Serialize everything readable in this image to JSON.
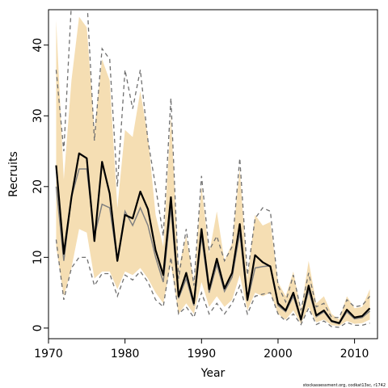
{
  "chart_data": {
    "type": "line",
    "title": "",
    "xlabel": "Year",
    "ylabel": "Recruits",
    "xlim": [
      1970,
      2013
    ],
    "ylim": [
      -1.5,
      45
    ],
    "xticks": [
      1970,
      1980,
      1990,
      2000,
      2010
    ],
    "yticks": [
      0,
      10,
      20,
      30,
      40
    ],
    "grid": false,
    "legend": "none",
    "credit": "stockassessment.org, codkat13sc, r1742",
    "colors": {
      "band": "#f5deb3",
      "estimate": "#000000",
      "secondary": "#808080",
      "bounds": "#707070"
    },
    "x": [
      1971,
      1972,
      1973,
      1974,
      1975,
      1976,
      1977,
      1978,
      1979,
      1980,
      1981,
      1982,
      1983,
      1984,
      1985,
      1986,
      1987,
      1988,
      1989,
      1990,
      1991,
      1992,
      1993,
      1994,
      1995,
      1996,
      1997,
      1998,
      1999,
      2000,
      2001,
      2002,
      2003,
      2004,
      2005,
      2006,
      2007,
      2008,
      2009,
      2010,
      2011,
      2012
    ],
    "series": [
      {
        "values": [
          23.0,
          10.5,
          18.5,
          24.7,
          24.0,
          12.3,
          23.5,
          19.0,
          9.5,
          16.0,
          15.5,
          19.3,
          16.8,
          11.0,
          7.5,
          18.5,
          4.5,
          7.8,
          3.5,
          14.0,
          5.5,
          9.8,
          5.6,
          7.8,
          14.7,
          4.0,
          10.3,
          9.3,
          8.7,
          3.5,
          2.5,
          5.0,
          1.2,
          6.0,
          1.8,
          2.5,
          1.0,
          0.7,
          2.6,
          1.5,
          1.7,
          2.8
        ],
        "style": "estimate"
      },
      {
        "values": [
          20.0,
          9.5,
          18.5,
          22.5,
          22.5,
          13.0,
          17.5,
          17.0,
          9.5,
          16.5,
          14.5,
          17.0,
          14.5,
          10.0,
          6.5,
          17.0,
          4.2,
          7.0,
          3.2,
          13.0,
          5.0,
          9.0,
          5.2,
          7.2,
          13.5,
          3.8,
          8.5,
          8.7,
          8.8,
          3.2,
          2.3,
          4.5,
          1.1,
          5.3,
          1.6,
          2.3,
          0.9,
          0.6,
          2.3,
          1.3,
          1.5,
          2.4
        ],
        "style": "secondary"
      }
    ],
    "band": {
      "upper": [
        43.5,
        21.0,
        35.0,
        44.0,
        42.5,
        28.0,
        38.0,
        35.0,
        17.0,
        28.0,
        27.0,
        33.5,
        27.0,
        16.0,
        11.5,
        30.0,
        8.5,
        13.0,
        6.5,
        20.0,
        10.5,
        16.5,
        9.5,
        12.0,
        22.5,
        7.0,
        16.0,
        14.5,
        15.0,
        6.5,
        4.5,
        8.0,
        2.5,
        9.5,
        3.5,
        4.5,
        2.0,
        1.2,
        4.5,
        2.8,
        3.0,
        5.5
      ],
      "lower": [
        11.5,
        4.5,
        8.5,
        14.0,
        13.5,
        7.0,
        8.0,
        8.0,
        5.5,
        8.0,
        7.5,
        8.5,
        7.0,
        5.0,
        3.5,
        9.0,
        2.0,
        3.5,
        2.0,
        6.5,
        3.0,
        4.5,
        3.0,
        4.0,
        7.5,
        2.5,
        5.0,
        4.5,
        5.0,
        2.0,
        1.2,
        2.5,
        0.6,
        3.0,
        0.8,
        1.2,
        0.4,
        0.3,
        1.0,
        0.6,
        0.7,
        1.2
      ]
    },
    "bounds": {
      "upper": [
        36.5,
        25.0,
        46.0,
        52.0,
        47.0,
        26.5,
        39.5,
        38.0,
        20.0,
        36.5,
        31.0,
        36.5,
        26.5,
        20.0,
        13.0,
        32.5,
        7.0,
        14.0,
        6.0,
        21.5,
        11.0,
        13.0,
        9.5,
        11.5,
        24.0,
        7.5,
        15.5,
        17.0,
        16.5,
        6.0,
        3.7,
        7.5,
        2.5,
        7.8,
        3.0,
        3.5,
        1.5,
        1.5,
        4.0,
        3.0,
        3.2,
        4.5
      ],
      "lower": [
        12.5,
        4.0,
        8.5,
        10.0,
        10.0,
        6.0,
        7.7,
        7.7,
        4.5,
        7.5,
        6.8,
        8.0,
        6.5,
        4.0,
        3.0,
        10.0,
        2.0,
        3.0,
        1.5,
        5.0,
        2.0,
        3.5,
        2.0,
        3.5,
        6.0,
        2.0,
        4.5,
        4.8,
        5.0,
        2.0,
        1.0,
        2.0,
        0.5,
        2.8,
        0.5,
        1.0,
        0.2,
        0.1,
        0.8,
        0.4,
        0.4,
        0.7
      ]
    }
  }
}
